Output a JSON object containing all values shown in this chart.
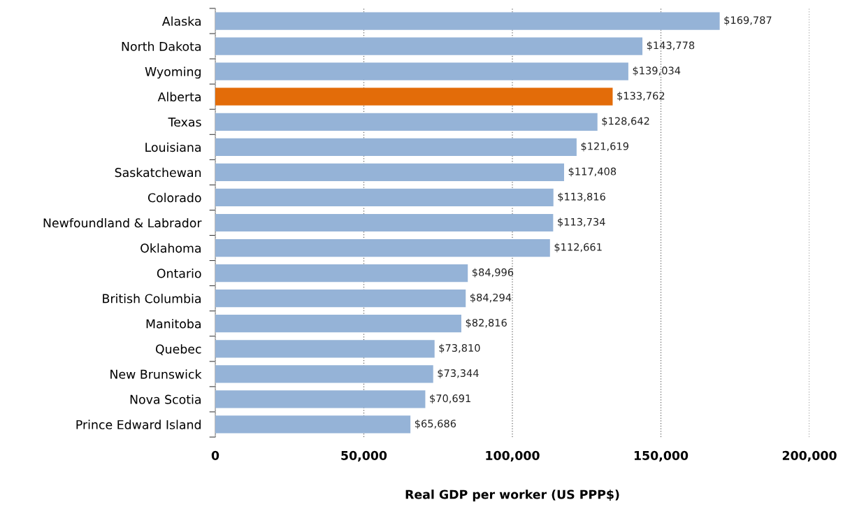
{
  "chart_data": {
    "type": "bar",
    "orientation": "horizontal",
    "xlabel": "Real GDP per worker (US PPP$)",
    "categories": [
      "Alaska",
      "North Dakota",
      "Wyoming",
      "Alberta",
      "Texas",
      "Louisiana",
      "Saskatchewan",
      "Colorado",
      "Newfoundland & Labrador",
      "Oklahoma",
      "Ontario",
      "British Columbia",
      "Manitoba",
      "Quebec",
      "New Brunswick",
      "Nova Scotia",
      "Prince Edward Island"
    ],
    "values": [
      169787,
      143778,
      139034,
      133762,
      128642,
      121619,
      117408,
      113816,
      113734,
      112661,
      84996,
      84294,
      82816,
      73810,
      73344,
      70691,
      65686
    ],
    "colors": [
      "#95b3d7",
      "#95b3d7",
      "#95b3d7",
      "#e36c09",
      "#95b3d7",
      "#95b3d7",
      "#95b3d7",
      "#95b3d7",
      "#95b3d7",
      "#95b3d7",
      "#95b3d7",
      "#95b3d7",
      "#95b3d7",
      "#95b3d7",
      "#95b3d7",
      "#95b3d7",
      "#95b3d7"
    ],
    "value_labels": [
      "$169,787",
      "$143,778",
      "$139,034",
      "$133,762",
      "$128,642",
      "$121,619",
      "$117,408",
      "$113,816",
      "$113,734",
      "$112,661",
      "$84,996",
      "$84,294",
      "$82,816",
      "$73,810",
      "$73,344",
      "$70,691",
      "$65,686"
    ],
    "xlim": [
      0,
      200000
    ],
    "xticks": [
      0,
      {
        "value": 50000,
        "label": "50,000"
      },
      {
        "value": 100000,
        "label": "100,000"
      },
      {
        "value": 150000,
        "label": "150,000"
      },
      {
        "value": 200000,
        "label": "200,000"
      }
    ],
    "grid": "x",
    "legend": false
  }
}
